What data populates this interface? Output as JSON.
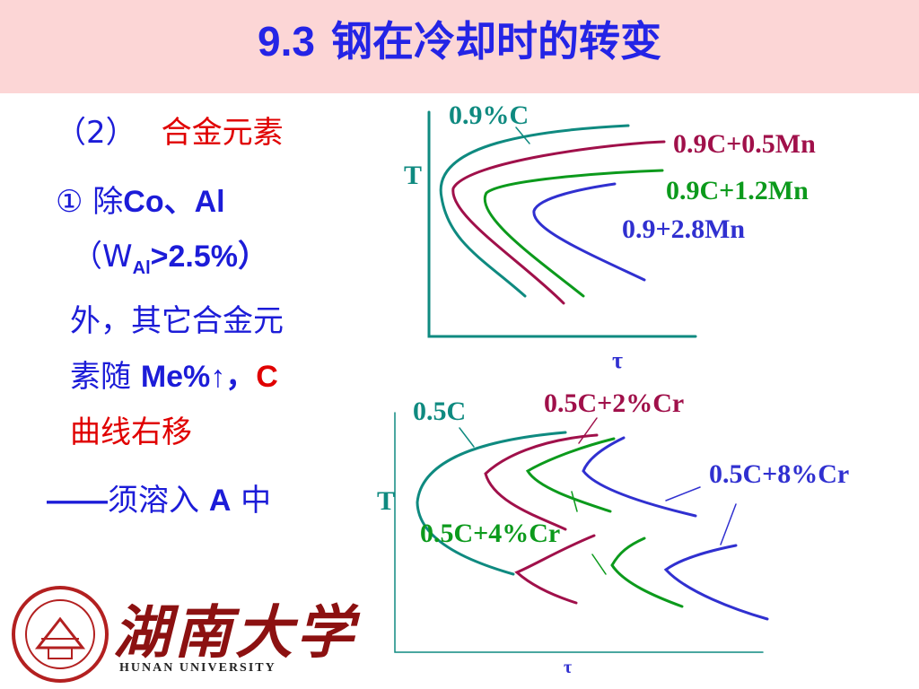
{
  "header": {
    "section": "9.3",
    "title": "钢在冷却时的转变"
  },
  "left": {
    "item_number": "（2）",
    "item_title": "合金元素",
    "line1_prefix": "① 除",
    "line1_bold": "Co、Al",
    "line2_open": "（W",
    "line2_sub": "Al",
    "line2_rest": ">2.5%）",
    "line3": "外，其它合金元",
    "line4_prefix": "素随 ",
    "line4_bold": "Me%↑，",
    "line4_red": "C",
    "line5": "曲线右移",
    "line6_dash": "——",
    "line6_text": "须溶入 ",
    "line6_bold": "A",
    "line6_end": " 中"
  },
  "diagram_top": {
    "y_axis": "T",
    "x_axis": "τ",
    "labels": [
      "0.9%C",
      "0.9C+0.5Mn",
      "0.9C+1.2Mn",
      "0.9+2.8Mn"
    ],
    "colors": [
      "#0f8a80",
      "#a0104a",
      "#0c9a1c",
      "#3030d0"
    ]
  },
  "diagram_bottom": {
    "y_axis": "T",
    "x_axis": "τ",
    "labels": [
      "0.5C",
      "0.5C+2%Cr",
      "0.5C+4%Cr",
      "0.5C+8%Cr"
    ],
    "colors": [
      "#0f8a80",
      "#a0104a",
      "#0c9a1c",
      "#3030d0"
    ]
  },
  "logo": {
    "name_cn": "湖南大学",
    "name_en": "HUNAN UNIVERSITY"
  }
}
